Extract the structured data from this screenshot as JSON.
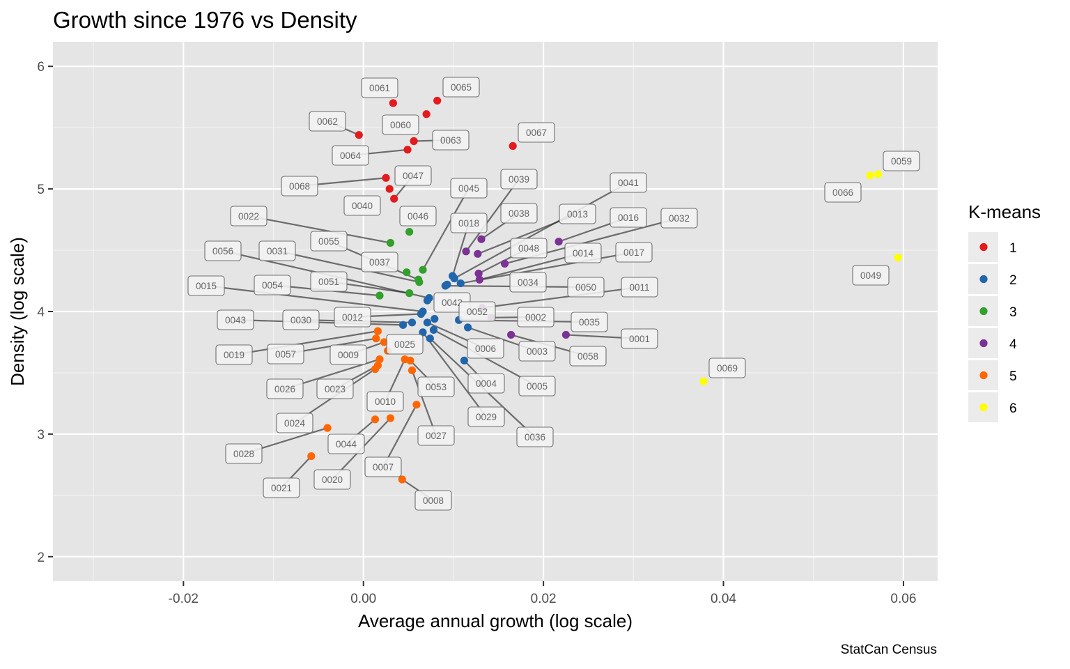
{
  "chart_data": {
    "type": "scatter",
    "title": "Growth since 1976 vs Density",
    "xlabel": "Average annual growth (log scale)",
    "ylabel": "Density (log scale)",
    "caption": "StatCan Census",
    "xlim": [
      -0.0345,
      0.0638
    ],
    "ylim": [
      1.8,
      6.2
    ],
    "xticks": [
      -0.02,
      0.0,
      0.02,
      0.04,
      0.06
    ],
    "xtick_labels": [
      "-0.02",
      "0.00",
      "0.02",
      "0.04",
      "0.06"
    ],
    "yticks": [
      2,
      3,
      4,
      5,
      6
    ],
    "ytick_labels": [
      "2",
      "3",
      "4",
      "5",
      "6"
    ],
    "grid": true,
    "legend": {
      "title": "K-means",
      "placement": "right",
      "entries": [
        {
          "cluster": "1",
          "color": "#e41a1c"
        },
        {
          "cluster": "2",
          "color": "#2166ac"
        },
        {
          "cluster": "3",
          "color": "#33a02c"
        },
        {
          "cluster": "4",
          "color": "#7b3294"
        },
        {
          "cluster": "5",
          "color": "#ff6600"
        },
        {
          "cluster": "6",
          "color": "#ffff00"
        }
      ]
    },
    "points": [
      {
        "id": "0061",
        "x": 0.0033,
        "y": 5.7,
        "cluster": "1"
      },
      {
        "id": "0065",
        "x": 0.0082,
        "y": 5.72,
        "cluster": "1"
      },
      {
        "id": "0060",
        "x": 0.007,
        "y": 5.61,
        "cluster": "1"
      },
      {
        "id": "0062",
        "x": -0.0005,
        "y": 5.44,
        "cluster": "1"
      },
      {
        "id": "0063",
        "x": 0.0056,
        "y": 5.39,
        "cluster": "1"
      },
      {
        "id": "0064",
        "x": 0.0049,
        "y": 5.32,
        "cluster": "1"
      },
      {
        "id": "0067",
        "x": 0.0166,
        "y": 5.35,
        "cluster": "1"
      },
      {
        "id": "0068",
        "x": 0.0025,
        "y": 5.09,
        "cluster": "1"
      },
      {
        "id": "0040",
        "x": 0.0029,
        "y": 5.0,
        "cluster": "1"
      },
      {
        "id": "0047",
        "x": 0.0034,
        "y": 4.92,
        "cluster": "1"
      },
      {
        "id": "0046",
        "x": 0.0051,
        "y": 4.65,
        "cluster": "3"
      },
      {
        "id": "0022",
        "x": 0.003,
        "y": 4.56,
        "cluster": "3"
      },
      {
        "id": "0037",
        "x": 0.0048,
        "y": 4.32,
        "cluster": "3"
      },
      {
        "id": "0045",
        "x": 0.0066,
        "y": 4.34,
        "cluster": "3"
      },
      {
        "id": "0055",
        "x": 0.0061,
        "y": 4.26,
        "cluster": "3"
      },
      {
        "id": "0031",
        "x": 0.0062,
        "y": 4.24,
        "cluster": "3"
      },
      {
        "id": "0051",
        "x": 0.0051,
        "y": 4.15,
        "cluster": "3"
      },
      {
        "id": "0054",
        "x": 0.0018,
        "y": 4.13,
        "cluster": "3"
      },
      {
        "id": "0018",
        "x": 0.0099,
        "y": 4.29,
        "cluster": "2"
      },
      {
        "id": "0041",
        "x": 0.0101,
        "y": 4.27,
        "cluster": "2"
      },
      {
        "id": "0017",
        "x": 0.0108,
        "y": 4.23,
        "cluster": "2"
      },
      {
        "id": "0034",
        "x": 0.0093,
        "y": 4.22,
        "cluster": "2"
      },
      {
        "id": "0050",
        "x": 0.0091,
        "y": 4.21,
        "cluster": "2"
      },
      {
        "id": "0056",
        "x": 0.0073,
        "y": 4.11,
        "cluster": "2"
      },
      {
        "id": "0042",
        "x": 0.0071,
        "y": 4.09,
        "cluster": "2"
      },
      {
        "id": "0015",
        "x": 0.0066,
        "y": 4.0,
        "cluster": "2"
      },
      {
        "id": "0012",
        "x": 0.0064,
        "y": 3.98,
        "cluster": "2"
      },
      {
        "id": "0052",
        "x": 0.0079,
        "y": 3.94,
        "cluster": "2"
      },
      {
        "id": "0035",
        "x": 0.0106,
        "y": 3.93,
        "cluster": "2"
      },
      {
        "id": "0030",
        "x": 0.0054,
        "y": 3.91,
        "cluster": "2"
      },
      {
        "id": "0006",
        "x": 0.0071,
        "y": 3.91,
        "cluster": "2"
      },
      {
        "id": "0043",
        "x": 0.0044,
        "y": 3.89,
        "cluster": "2"
      },
      {
        "id": "0003",
        "x": 0.0116,
        "y": 3.87,
        "cluster": "2"
      },
      {
        "id": "0005",
        "x": 0.0078,
        "y": 3.85,
        "cluster": "2"
      },
      {
        "id": "0029",
        "x": 0.0066,
        "y": 3.83,
        "cluster": "2"
      },
      {
        "id": "0036",
        "x": 0.0074,
        "y": 3.78,
        "cluster": "2"
      },
      {
        "id": "0004",
        "x": 0.0112,
        "y": 3.6,
        "cluster": "2"
      },
      {
        "id": "0038",
        "x": 0.0131,
        "y": 4.59,
        "cluster": "4"
      },
      {
        "id": "0039",
        "x": 0.0114,
        "y": 4.49,
        "cluster": "4"
      },
      {
        "id": "0013",
        "x": 0.0127,
        "y": 4.47,
        "cluster": "4"
      },
      {
        "id": "0016",
        "x": 0.0217,
        "y": 4.57,
        "cluster": "4"
      },
      {
        "id": "0032",
        "x": 0.0157,
        "y": 4.39,
        "cluster": "4"
      },
      {
        "id": "0048",
        "x": 0.0128,
        "y": 4.31,
        "cluster": "4"
      },
      {
        "id": "0014",
        "x": 0.0129,
        "y": 4.26,
        "cluster": "4"
      },
      {
        "id": "0011",
        "x": 0.0132,
        "y": 4.03,
        "cluster": "4"
      },
      {
        "id": "0002",
        "x": 0.0142,
        "y": 3.95,
        "cluster": "4"
      },
      {
        "id": "0058",
        "x": 0.0164,
        "y": 3.81,
        "cluster": "4"
      },
      {
        "id": "0001",
        "x": 0.0225,
        "y": 3.81,
        "cluster": "4"
      },
      {
        "id": "0019",
        "x": 0.0016,
        "y": 3.84,
        "cluster": "5"
      },
      {
        "id": "0057",
        "x": 0.0014,
        "y": 3.78,
        "cluster": "5"
      },
      {
        "id": "0009",
        "x": 0.0023,
        "y": 3.75,
        "cluster": "5"
      },
      {
        "id": "0025",
        "x": 0.0027,
        "y": 3.68,
        "cluster": "5"
      },
      {
        "id": "0026",
        "x": 0.0018,
        "y": 3.61,
        "cluster": "5"
      },
      {
        "id": "0023",
        "x": 0.0016,
        "y": 3.56,
        "cluster": "5"
      },
      {
        "id": "0024",
        "x": 0.0013,
        "y": 3.53,
        "cluster": "5"
      },
      {
        "id": "0010",
        "x": 0.0046,
        "y": 3.61,
        "cluster": "5"
      },
      {
        "id": "0053",
        "x": 0.0052,
        "y": 3.6,
        "cluster": "5"
      },
      {
        "id": "0027",
        "x": 0.0054,
        "y": 3.52,
        "cluster": "5"
      },
      {
        "id": "0007",
        "x": 0.0059,
        "y": 3.24,
        "cluster": "5"
      },
      {
        "id": "0028",
        "x": -0.004,
        "y": 3.05,
        "cluster": "5"
      },
      {
        "id": "0044",
        "x": 0.0013,
        "y": 3.12,
        "cluster": "5"
      },
      {
        "id": "0020",
        "x": 0.003,
        "y": 3.13,
        "cluster": "5"
      },
      {
        "id": "0021",
        "x": -0.0058,
        "y": 2.82,
        "cluster": "5"
      },
      {
        "id": "0008",
        "x": 0.0043,
        "y": 2.63,
        "cluster": "5"
      },
      {
        "id": "0066",
        "x": 0.0563,
        "y": 5.11,
        "cluster": "6"
      },
      {
        "id": "0059",
        "x": 0.0572,
        "y": 5.12,
        "cluster": "6"
      },
      {
        "id": "0049",
        "x": 0.0594,
        "y": 4.44,
        "cluster": "6"
      },
      {
        "id": "0069",
        "x": 0.0378,
        "y": 3.43,
        "cluster": "6"
      }
    ]
  }
}
